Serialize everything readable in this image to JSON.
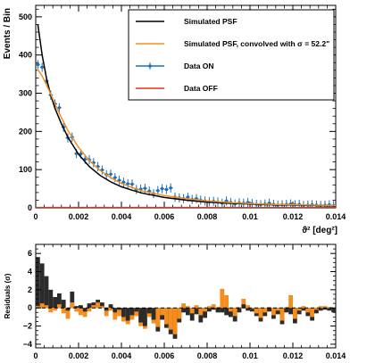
{
  "chart_data": [
    {
      "type": "line",
      "panel": "top",
      "xlabel": "ϑ² [deg²]",
      "ylabel": "Events / Bin",
      "xlim": [
        0,
        0.014
      ],
      "ylim": [
        0,
        530
      ],
      "x_ticks": [
        "0",
        "0.002",
        "0.004",
        "0.006",
        "0.008",
        "0.01",
        "0.012",
        "0.014"
      ],
      "y_ticks": [
        "0",
        "100",
        "200",
        "300",
        "400",
        "500"
      ],
      "legend_position": "top-right",
      "legend": [
        {
          "label": "Simulated PSF",
          "color": "#000000"
        },
        {
          "label": "Simulated PSF, convolved with σ = 52.2\"",
          "color": "#f58d1f"
        },
        {
          "label": "Data ON",
          "color": "#1f6fb4"
        },
        {
          "label": "Data OFF",
          "color": "#e8331a"
        }
      ],
      "series": [
        {
          "name": "Simulated PSF",
          "color": "#000000",
          "x": [
            0.0001,
            0.0003,
            0.0005,
            0.0007,
            0.0009,
            0.0012,
            0.0015,
            0.002,
            0.0025,
            0.003,
            0.0035,
            0.004,
            0.0045,
            0.005,
            0.006,
            0.007,
            0.008,
            0.009,
            0.01,
            0.011,
            0.012,
            0.013,
            0.014
          ],
          "y": [
            480,
            400,
            340,
            295,
            260,
            220,
            185,
            140,
            108,
            85,
            68,
            55,
            46,
            38,
            27,
            20,
            15,
            12,
            10,
            8,
            7,
            6,
            5
          ]
        },
        {
          "name": "Simulated PSF, convolved with σ = 52.2\"",
          "color": "#f58d1f",
          "x": [
            0.0001,
            0.0003,
            0.0005,
            0.0007,
            0.0009,
            0.0012,
            0.0015,
            0.002,
            0.0025,
            0.003,
            0.0035,
            0.004,
            0.0045,
            0.005,
            0.006,
            0.007,
            0.008,
            0.009,
            0.01,
            0.011,
            0.012,
            0.013,
            0.014
          ],
          "y": [
            362,
            345,
            322,
            298,
            272,
            236,
            203,
            158,
            124,
            98,
            79,
            64,
            53,
            44,
            32,
            24,
            18,
            14,
            11,
            9,
            8,
            7,
            6
          ]
        },
        {
          "name": "Data ON",
          "color": "#1f6fb4",
          "x": [
            0.0001,
            0.0003,
            0.0005,
            0.0007,
            0.0009,
            0.0011,
            0.0013,
            0.0015,
            0.0017,
            0.0019,
            0.0021,
            0.0023,
            0.0025,
            0.0027,
            0.0029,
            0.0031,
            0.0033,
            0.0035,
            0.0037,
            0.0039,
            0.0041,
            0.0043,
            0.0045,
            0.0047,
            0.0049,
            0.0051,
            0.0053,
            0.0055,
            0.0057,
            0.0059,
            0.0061,
            0.0063,
            0.0065,
            0.0067,
            0.0069,
            0.0071,
            0.0073,
            0.0075,
            0.0077,
            0.0079,
            0.0081,
            0.0083,
            0.0085,
            0.0087,
            0.0089,
            0.0091,
            0.0093,
            0.0095,
            0.0097,
            0.0099,
            0.0101,
            0.0103,
            0.0105,
            0.0107,
            0.0109,
            0.0111,
            0.0113,
            0.0115,
            0.0117,
            0.0119,
            0.0121,
            0.0123,
            0.0125,
            0.0127,
            0.0129,
            0.0131,
            0.0133,
            0.0135,
            0.0137,
            0.0139
          ],
          "y": [
            375,
            368,
            332,
            295,
            272,
            262,
            211,
            183,
            185,
            142,
            141,
            127,
            126,
            118,
            108,
            99,
            87,
            88,
            79,
            72,
            67,
            63,
            62,
            48,
            49,
            51,
            44,
            37,
            45,
            50,
            48,
            52,
            28,
            26,
            24,
            28,
            22,
            24,
            20,
            18,
            16,
            17,
            15,
            12,
            18,
            14,
            10,
            13,
            12,
            14,
            11,
            9,
            8,
            10,
            12,
            9,
            7,
            8,
            9,
            10,
            8,
            9,
            6,
            7,
            8,
            7,
            6,
            7,
            8,
            6
          ],
          "yerr": 12
        },
        {
          "name": "Data OFF",
          "color": "#e8331a",
          "x": [
            0,
            0.014
          ],
          "y": [
            1,
            1
          ]
        }
      ]
    },
    {
      "type": "bar",
      "panel": "bottom",
      "xlabel": "",
      "ylabel": "Residuals (σ)",
      "xlim": [
        0,
        0.014
      ],
      "ylim": [
        -4.4,
        7
      ],
      "x_ticks": [
        "0",
        "0.002",
        "0.004",
        "0.006",
        "0.008",
        "0.01",
        "0.012",
        "0.014"
      ],
      "y_ticks": [
        "−4",
        "−2",
        "0",
        "2",
        "4",
        "6"
      ],
      "bin_width": 0.0002,
      "series": [
        {
          "name": "vs Simulated PSF",
          "color": "#2b2b2b",
          "values": [
            5.6,
            4.9,
            3.5,
            2.0,
            1.2,
            1.6,
            0.9,
            -0.3,
            1.8,
            0.2,
            0.3,
            -0.4,
            0.5,
            0.6,
            0.9,
            0.6,
            -0.3,
            0.4,
            -0.5,
            -0.2,
            -1.0,
            -1.4,
            -0.8,
            -0.4,
            -1.6,
            -2.0,
            -0.6,
            -1.3,
            -2.6,
            -1.3,
            -2.2,
            -2.9,
            -3.4,
            -1.6,
            -0.5,
            -0.8,
            -1.4,
            -0.7,
            -1.6,
            -1.1,
            -0.4,
            -0.2,
            -0.5,
            -0.5,
            -0.8,
            -1.0,
            -1.5,
            -0.5,
            0.4,
            -0.3,
            -0.4,
            -0.9,
            -1.5,
            -0.9,
            -0.4,
            -1.2,
            -0.7,
            -1.8,
            -0.5,
            -0.7,
            -1.7,
            -0.7,
            -0.3,
            -0.9,
            -1.4,
            -0.6,
            -0.3,
            -0.2,
            -0.3,
            -0.5
          ]
        },
        {
          "name": "vs convolved PSF",
          "color": "#f58d1f",
          "values": [
            0.2,
            0.5,
            0.3,
            -0.5,
            -0.3,
            0.4,
            -0.6,
            -1.2,
            0.6,
            -0.4,
            -0.8,
            -1.0,
            -0.4,
            0.3,
            0.6,
            0.2,
            -0.9,
            -0.3,
            -1.3,
            -0.9,
            -1.5,
            -1.8,
            -1.3,
            -0.9,
            -2.0,
            -2.3,
            -1.0,
            -1.7,
            -2.1,
            -0.8,
            -1.8,
            -2.4,
            -2.9,
            -1.2,
            0.5,
            0.2,
            -0.6,
            0.3,
            -0.8,
            -0.4,
            0.2,
            0.4,
            0.1,
            2.1,
            1.4,
            -0.4,
            -0.9,
            0.1,
            1.0,
            0.3,
            -0.1,
            -0.6,
            -1.1,
            -0.5,
            0.1,
            -0.8,
            -0.3,
            -1.4,
            0.1,
            1.4,
            -1.2,
            -0.3,
            0.2,
            -0.5,
            -1.0,
            -0.2,
            0.2,
            0.2,
            0.1,
            0.0
          ]
        }
      ]
    }
  ]
}
